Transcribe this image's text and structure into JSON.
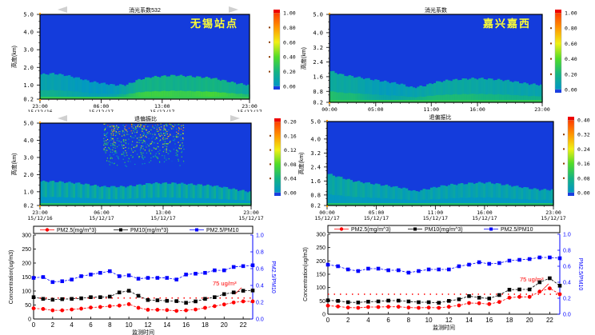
{
  "chart_data": [
    {
      "type": "heatmap",
      "panel": "top-left",
      "title": "消光系数532",
      "station_label": "无锡站点",
      "ylabel": "高度(km)",
      "ylim": [
        0.2,
        5.0
      ],
      "yticks": [
        "0.2",
        "1.0",
        "2.0",
        "3.0",
        "4.0",
        "5.0"
      ],
      "ytick_values": [
        0.2,
        1.0,
        2.0,
        3.0,
        4.0,
        5.0
      ],
      "xticks": [
        {
          "pos": 0.0,
          "time": "23:00",
          "date": "15/12/16"
        },
        {
          "pos": 0.2917,
          "time": "06:00",
          "date": "15/12/17"
        },
        {
          "pos": 0.5833,
          "time": "13:00",
          "date": "15/12/17"
        },
        {
          "pos": 1.0,
          "time": "23:00",
          "date": "15/12/17"
        }
      ],
      "colorbar": {
        "min": 0.0,
        "max": 1.0,
        "ticks": [
          "0.00",
          "0.20",
          "0.40",
          "0.60",
          "0.80",
          "1.00"
        ]
      },
      "boundary_layer_top_km": [
        1.6,
        1.65,
        1.55,
        1.4,
        1.2,
        1.1,
        1.0,
        1.0,
        1.3,
        1.45,
        1.5,
        1.55,
        1.5,
        1.45,
        1.4,
        1.25,
        1.1,
        1.0
      ],
      "intensity": [
        0.15,
        0.15,
        0.12,
        0.1,
        0.08,
        0.08,
        0.1,
        0.2,
        0.28,
        0.3,
        0.3,
        0.28,
        0.28,
        0.3,
        0.32,
        0.3,
        0.25,
        0.2
      ],
      "has_nav_arrows": true
    },
    {
      "type": "heatmap",
      "panel": "top-right",
      "title": "消光系数",
      "station_label": "嘉兴嘉西",
      "ylabel": "高度(km)",
      "ylim": [
        0.2,
        5.0
      ],
      "yticks": [
        "0.2",
        "0.8",
        "1.6",
        "2.4",
        "3.2",
        "4.0",
        "5.0"
      ],
      "ytick_values": [
        0.2,
        0.8,
        1.6,
        2.4,
        3.2,
        4.0,
        5.0
      ],
      "xticks": [
        {
          "pos": 0.0,
          "time": "00:00",
          "date": "15/12/17"
        },
        {
          "pos": 0.2174,
          "time": "05:00",
          "date": "15/12/17"
        },
        {
          "pos": 0.4783,
          "time": "11:00",
          "date": "15/12/17"
        },
        {
          "pos": 0.6957,
          "time": "16:00",
          "date": "15/12/17"
        },
        {
          "pos": 1.0,
          "time": "23:00",
          "date": "15/12/17"
        }
      ],
      "colorbar": {
        "min": 0.0,
        "max": 1.0,
        "ticks": [
          "0.00",
          "0.20",
          "0.40",
          "0.60",
          "0.80",
          "1.00"
        ]
      },
      "boundary_layer_top_km": [
        1.9,
        1.7,
        1.6,
        1.5,
        1.4,
        1.3,
        1.2,
        1.0,
        1.1,
        1.3,
        1.4,
        1.45,
        1.5,
        1.5,
        1.45,
        1.4,
        1.3,
        1.2,
        1.15
      ],
      "intensity": [
        0.22,
        0.2,
        0.2,
        0.15,
        0.12,
        0.1,
        0.12,
        0.15,
        0.18,
        0.2,
        0.2,
        0.2,
        0.2,
        0.18,
        0.18,
        0.17,
        0.16,
        0.16,
        0.16
      ],
      "has_nav_arrows": false
    },
    {
      "type": "heatmap",
      "panel": "middle-left",
      "title": "退偏振比",
      "ylabel": "高度(km)",
      "ylim": [
        0.2,
        5.0
      ],
      "yticks": [
        "0.2",
        "1.0",
        "2.0",
        "3.0",
        "4.0",
        "5.0"
      ],
      "ytick_values": [
        0.2,
        1.0,
        2.0,
        3.0,
        4.0,
        5.0
      ],
      "xticks": [
        {
          "pos": 0.0,
          "time": "23:00",
          "date": "15/12/16"
        },
        {
          "pos": 0.2917,
          "time": "06:00",
          "date": "15/12/17"
        },
        {
          "pos": 0.5833,
          "time": "13:00",
          "date": "15/12/17"
        },
        {
          "pos": 1.0,
          "time": "23:00",
          "date": "15/12/17"
        }
      ],
      "colorbar": {
        "min": 0.0,
        "max": 0.2,
        "ticks": [
          "0.00",
          "0.04",
          "0.08",
          "0.12",
          "0.16",
          "0.20"
        ]
      },
      "boundary_layer_top_km": [
        1.6,
        1.6,
        1.55,
        1.5,
        1.4,
        1.3,
        1.3,
        1.3,
        1.4,
        1.5,
        1.5,
        1.5,
        1.45,
        1.4,
        1.35,
        1.25,
        1.1,
        1.0
      ],
      "intensity": [
        0.02,
        0.02,
        0.02,
        0.02,
        0.02,
        0.02,
        0.02,
        0.02,
        0.02,
        0.02,
        0.02,
        0.02,
        0.02,
        0.02,
        0.02,
        0.02,
        0.02,
        0.02
      ],
      "noise_region": {
        "x_from": 0.3,
        "x_to": 0.68,
        "y_from_km": 2.5
      },
      "has_nav_arrows": true
    },
    {
      "type": "heatmap",
      "panel": "middle-right",
      "title": "退偏振比",
      "ylabel": "高度(km)",
      "ylim": [
        0.2,
        5.0
      ],
      "yticks": [
        "0.2",
        "0.8",
        "1.6",
        "2.4",
        "3.2",
        "4.0",
        "5.0"
      ],
      "ytick_values": [
        0.2,
        0.8,
        1.6,
        2.4,
        3.2,
        4.0,
        5.0
      ],
      "xticks": [
        {
          "pos": 0.0,
          "time": "00:00",
          "date": "15/12/17"
        },
        {
          "pos": 0.2174,
          "time": "05:00",
          "date": "15/12/17"
        },
        {
          "pos": 0.4783,
          "time": "11:00",
          "date": "15/12/17"
        },
        {
          "pos": 0.6957,
          "time": "16:00",
          "date": "15/12/17"
        },
        {
          "pos": 1.0,
          "time": "23:00",
          "date": "15/12/17"
        }
      ],
      "colorbar": {
        "min": 0.0,
        "max": 0.4,
        "ticks": [
          "0.00",
          "0.08",
          "0.16",
          "0.24",
          "0.32",
          "0.40"
        ]
      },
      "boundary_layer_top_km": [
        2.0,
        1.8,
        1.6,
        1.5,
        1.4,
        1.3,
        1.2,
        1.0,
        1.15,
        1.3,
        1.4,
        1.45,
        1.5,
        1.5,
        1.4,
        1.3,
        1.2,
        1.1,
        1.1
      ],
      "intensity": [
        0.06,
        0.06,
        0.07,
        0.06,
        0.05,
        0.05,
        0.05,
        0.04,
        0.05,
        0.05,
        0.05,
        0.05,
        0.05,
        0.05,
        0.05,
        0.05,
        0.05,
        0.05,
        0.05
      ],
      "has_nav_arrows": false
    },
    {
      "type": "line",
      "panel": "bottom-left",
      "xlabel": "监测时间",
      "ylabel": "Concentration(ug/m3)",
      "y2label": "PM2.5/PM10",
      "x": [
        0,
        1,
        2,
        3,
        4,
        5,
        6,
        7,
        8,
        9,
        10,
        11,
        12,
        13,
        14,
        15,
        16,
        17,
        18,
        19,
        20,
        21,
        22,
        23
      ],
      "xlim": [
        0,
        23
      ],
      "xticks": [
        "0",
        "2",
        "4",
        "6",
        "8",
        "10",
        "12",
        "14",
        "16",
        "18",
        "20",
        "22"
      ],
      "ylim": [
        0,
        300
      ],
      "yticks": [
        "0",
        "50",
        "100",
        "150",
        "200",
        "250",
        "300"
      ],
      "y2lim": [
        0.0,
        1.0
      ],
      "y2ticks": [
        "0.0",
        "0.2",
        "0.4",
        "0.6",
        "0.8",
        "1.0"
      ],
      "series": [
        {
          "name": "PM2.5(mg/m^3)",
          "axis": "left",
          "color": "#ff0000",
          "marker": "circle",
          "values": [
            38,
            36,
            31,
            31,
            34,
            37,
            41,
            43,
            46,
            48,
            53,
            40,
            33,
            33,
            32,
            29,
            31,
            34,
            40,
            46,
            52,
            59,
            63,
            63
          ]
        },
        {
          "name": "PM10(mg/m^3)",
          "axis": "left",
          "color": "#000000",
          "marker": "square",
          "values": [
            78,
            72,
            69,
            71,
            72,
            74,
            78,
            78,
            80,
            95,
            101,
            83,
            68,
            67,
            65,
            64,
            58,
            63,
            72,
            78,
            89,
            95,
            101,
            102
          ]
        },
        {
          "name": "PM2.5/PM10",
          "axis": "right",
          "color": "#0000ff",
          "marker": "square",
          "values": [
            0.49,
            0.5,
            0.44,
            0.45,
            0.47,
            0.51,
            0.53,
            0.55,
            0.57,
            0.51,
            0.52,
            0.48,
            0.49,
            0.49,
            0.49,
            0.47,
            0.53,
            0.54,
            0.55,
            0.58,
            0.58,
            0.62,
            0.63,
            0.64
          ]
        }
      ],
      "reference_line": {
        "value": 75,
        "label": "75 ug/m³",
        "color": "#ff0000",
        "style": "dotted"
      },
      "legend": "top"
    },
    {
      "type": "line",
      "panel": "bottom-right",
      "xlabel": "监测时间",
      "ylabel": "Concentration(ug/m3)",
      "y2label": "PM2.5/PM10",
      "x": [
        0,
        1,
        2,
        3,
        4,
        5,
        6,
        7,
        8,
        9,
        10,
        11,
        12,
        13,
        14,
        15,
        16,
        17,
        18,
        19,
        20,
        21,
        22,
        23
      ],
      "xlim": [
        0,
        23
      ],
      "xticks": [
        "0",
        "2",
        "4",
        "6",
        "8",
        "10",
        "12",
        "14",
        "16",
        "18",
        "20",
        "22"
      ],
      "ylim": [
        0,
        300
      ],
      "yticks": [
        "0",
        "50",
        "100",
        "150",
        "200",
        "250",
        "300"
      ],
      "y2lim": [
        0.0,
        1.0
      ],
      "y2ticks": [
        "0.0",
        "0.2",
        "0.4",
        "0.6",
        "0.8",
        "1.0"
      ],
      "series": [
        {
          "name": "PM2.5(mg/m^3)",
          "axis": "left",
          "color": "#ff0000",
          "marker": "circle",
          "values": [
            32,
            29,
            25,
            24,
            27,
            27,
            28,
            28,
            25,
            24,
            25,
            24,
            28,
            33,
            42,
            41,
            38,
            46,
            62,
            65,
            65,
            85,
            97,
            75
          ]
        },
        {
          "name": "PM10(mg/m^3)",
          "axis": "left",
          "color": "#000000",
          "marker": "square",
          "values": [
            52,
            50,
            45,
            44,
            47,
            48,
            51,
            51,
            48,
            45,
            45,
            43,
            50,
            56,
            68,
            62,
            59,
            72,
            92,
            93,
            93,
            120,
            135,
            107
          ]
        },
        {
          "name": "PM2.5/PM10",
          "axis": "right",
          "color": "#0000ff",
          "marker": "square",
          "values": [
            0.62,
            0.6,
            0.56,
            0.54,
            0.57,
            0.57,
            0.55,
            0.55,
            0.52,
            0.54,
            0.56,
            0.56,
            0.56,
            0.6,
            0.62,
            0.65,
            0.63,
            0.64,
            0.67,
            0.68,
            0.69,
            0.71,
            0.71,
            0.7
          ]
        }
      ],
      "reference_line": {
        "value": 75,
        "label": "75 ug/m³",
        "color": "#ff0000",
        "style": "dotted"
      },
      "legend": "top"
    }
  ]
}
